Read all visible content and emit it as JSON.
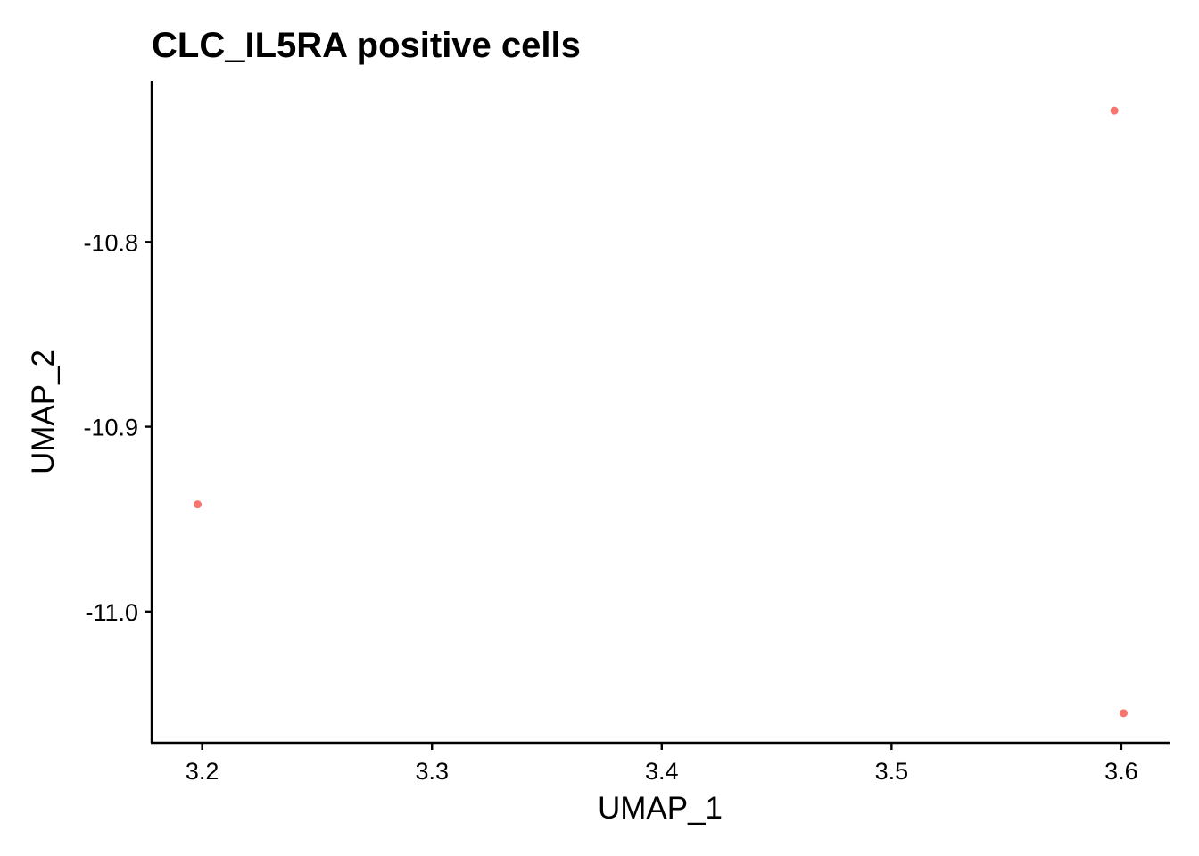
{
  "chart_data": {
    "type": "scatter",
    "title": "CLC_IL5RA positive cells",
    "xlabel": "UMAP_1",
    "ylabel": "UMAP_2",
    "xlim": [
      3.178,
      3.621
    ],
    "ylim": [
      -11.071,
      -10.713
    ],
    "x_ticks": [
      3.2,
      3.3,
      3.4,
      3.5,
      3.6
    ],
    "x_tick_labels": [
      "3.2",
      "3.3",
      "3.4",
      "3.5",
      "3.6"
    ],
    "y_ticks": [
      -10.8,
      -10.9,
      -11.0
    ],
    "y_tick_labels": [
      "-10.8",
      "-10.9",
      "-11.0"
    ],
    "grid": false,
    "legend": "none",
    "point_color": "#F8766D",
    "points": [
      {
        "x": 3.597,
        "y": -10.729
      },
      {
        "x": 3.198,
        "y": -10.942
      },
      {
        "x": 3.601,
        "y": -11.055
      }
    ]
  }
}
